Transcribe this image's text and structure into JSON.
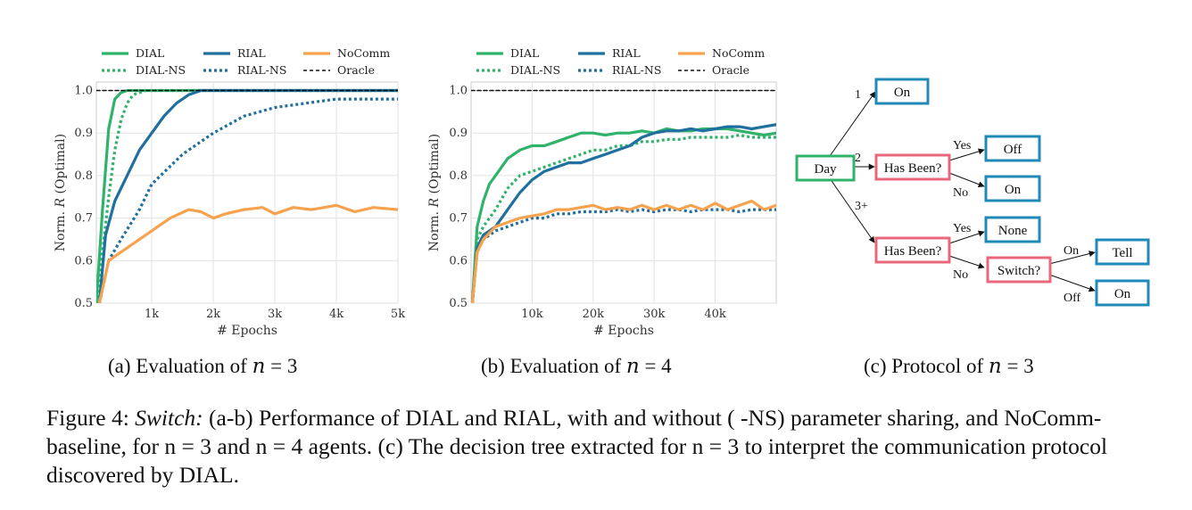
{
  "colors": {
    "DIAL": "#2fb36b",
    "RIAL": "#1f6f9f",
    "NoComm": "#f7a24e",
    "Oracle": "#111111",
    "tree_green": "#2fb36b",
    "tree_red": "#e8677b",
    "tree_blue": "#1f8ab8"
  },
  "legend": [
    {
      "name": "DIAL",
      "series": "DIAL",
      "dash": "solid"
    },
    {
      "name": "RIAL",
      "series": "RIAL",
      "dash": "solid"
    },
    {
      "name": "NoComm",
      "series": "NoComm",
      "dash": "solid"
    },
    {
      "name": "DIAL-NS",
      "series": "DIAL",
      "dash": "dotted"
    },
    {
      "name": "RIAL-NS",
      "series": "RIAL",
      "dash": "dotted"
    },
    {
      "name": "Oracle",
      "series": "Oracle",
      "dash": "dashed"
    }
  ],
  "chart_data": [
    {
      "type": "line",
      "xlabel": "# Epochs",
      "ylabel": "Norm. R (Optimal)",
      "xlim": [
        100,
        5000
      ],
      "ylim": [
        0.5,
        1.02
      ],
      "xticks": [
        1000,
        2000,
        3000,
        4000,
        5000
      ],
      "xtick_labels": [
        "1k",
        "2k",
        "3k",
        "4k",
        "5k"
      ],
      "yticks": [
        0.5,
        0.6,
        0.7,
        0.8,
        0.9,
        1.0
      ],
      "ytick_labels": [
        "0.5",
        "0.6",
        "0.7",
        "0.8",
        "0.9",
        "1.0"
      ],
      "grid": true,
      "legend_position": "top",
      "series": [
        {
          "name": "DIAL",
          "style": "solid",
          "x": [
            100,
            200,
            300,
            400,
            500,
            600,
            700,
            800,
            1000,
            5000
          ],
          "y": [
            0.5,
            0.72,
            0.91,
            0.98,
            0.995,
            1.0,
            1.0,
            1.0,
            1.0,
            1.0
          ]
        },
        {
          "name": "DIAL-NS",
          "style": "dotted",
          "x": [
            100,
            200,
            300,
            400,
            500,
            600,
            700,
            800,
            900,
            1000,
            5000
          ],
          "y": [
            0.5,
            0.62,
            0.75,
            0.86,
            0.93,
            0.97,
            0.99,
            0.995,
            1.0,
            1.0,
            1.0
          ]
        },
        {
          "name": "RIAL",
          "style": "solid",
          "x": [
            150,
            250,
            400,
            600,
            800,
            1000,
            1200,
            1400,
            1600,
            1800,
            2000,
            2500,
            5000
          ],
          "y": [
            0.5,
            0.66,
            0.74,
            0.8,
            0.86,
            0.9,
            0.94,
            0.97,
            0.99,
            1.0,
            1.0,
            1.0,
            1.0
          ]
        },
        {
          "name": "RIAL-NS",
          "style": "dotted",
          "x": [
            150,
            300,
            500,
            800,
            1000,
            1500,
            2000,
            2500,
            3000,
            3500,
            4000,
            4500,
            5000
          ],
          "y": [
            0.5,
            0.6,
            0.65,
            0.72,
            0.78,
            0.85,
            0.9,
            0.94,
            0.96,
            0.97,
            0.98,
            0.98,
            0.98
          ]
        },
        {
          "name": "NoComm",
          "style": "solid",
          "x": [
            150,
            300,
            500,
            700,
            1000,
            1300,
            1600,
            1800,
            2000,
            2200,
            2500,
            2800,
            3000,
            3300,
            3600,
            4000,
            4300,
            4600,
            5000
          ],
          "y": [
            0.5,
            0.6,
            0.62,
            0.64,
            0.67,
            0.7,
            0.72,
            0.715,
            0.7,
            0.71,
            0.72,
            0.725,
            0.71,
            0.725,
            0.72,
            0.73,
            0.715,
            0.725,
            0.72
          ]
        },
        {
          "name": "Oracle",
          "style": "dashed",
          "x": [
            100,
            5000
          ],
          "y": [
            1.0,
            1.0
          ]
        }
      ]
    },
    {
      "type": "line",
      "xlabel": "# Epochs",
      "ylabel": "Norm. R (Optimal)",
      "xlim": [
        0,
        50000
      ],
      "ylim": [
        0.5,
        1.02
      ],
      "xticks": [
        10000,
        20000,
        30000,
        40000
      ],
      "xtick_labels": [
        "10k",
        "20k",
        "30k",
        "40k"
      ],
      "yticks": [
        0.5,
        0.6,
        0.7,
        0.8,
        0.9,
        1.0
      ],
      "ytick_labels": [
        "0.5",
        "0.6",
        "0.7",
        "0.8",
        "0.9",
        "1.0"
      ],
      "grid": true,
      "legend_position": "top",
      "series": [
        {
          "name": "DIAL",
          "style": "solid",
          "x": [
            200,
            1000,
            2000,
            3000,
            4000,
            6000,
            8000,
            10000,
            12000,
            14000,
            16000,
            18000,
            20000,
            22000,
            24000,
            26000,
            28000,
            30000,
            32000,
            34000,
            36000,
            38000,
            40000,
            42000,
            44000,
            46000,
            48000,
            50000
          ],
          "y": [
            0.5,
            0.68,
            0.74,
            0.78,
            0.8,
            0.84,
            0.86,
            0.87,
            0.87,
            0.88,
            0.89,
            0.9,
            0.9,
            0.895,
            0.9,
            0.9,
            0.905,
            0.9,
            0.91,
            0.905,
            0.905,
            0.91,
            0.91,
            0.91,
            0.905,
            0.9,
            0.895,
            0.9
          ]
        },
        {
          "name": "DIAL-NS",
          "style": "dotted",
          "x": [
            200,
            1000,
            2000,
            4000,
            6000,
            8000,
            10000,
            12000,
            14000,
            16000,
            18000,
            20000,
            22000,
            24000,
            26000,
            28000,
            30000,
            32000,
            34000,
            36000,
            38000,
            40000,
            42000,
            44000,
            46000,
            48000,
            50000
          ],
          "y": [
            0.5,
            0.65,
            0.68,
            0.72,
            0.77,
            0.8,
            0.81,
            0.82,
            0.83,
            0.84,
            0.85,
            0.86,
            0.86,
            0.87,
            0.87,
            0.88,
            0.88,
            0.885,
            0.885,
            0.89,
            0.89,
            0.89,
            0.89,
            0.895,
            0.89,
            0.89,
            0.89
          ]
        },
        {
          "name": "RIAL",
          "style": "solid",
          "x": [
            200,
            1000,
            2000,
            4000,
            6000,
            8000,
            10000,
            12000,
            14000,
            16000,
            18000,
            20000,
            22000,
            24000,
            26000,
            28000,
            30000,
            32000,
            34000,
            36000,
            38000,
            40000,
            42000,
            44000,
            46000,
            48000,
            50000
          ],
          "y": [
            0.5,
            0.63,
            0.66,
            0.68,
            0.72,
            0.76,
            0.79,
            0.81,
            0.82,
            0.83,
            0.83,
            0.84,
            0.85,
            0.86,
            0.87,
            0.89,
            0.9,
            0.905,
            0.905,
            0.91,
            0.905,
            0.91,
            0.915,
            0.915,
            0.91,
            0.915,
            0.92
          ]
        },
        {
          "name": "RIAL-NS",
          "style": "dotted",
          "x": [
            200,
            1000,
            2000,
            4000,
            6000,
            8000,
            10000,
            12000,
            14000,
            16000,
            18000,
            20000,
            22000,
            24000,
            26000,
            28000,
            30000,
            32000,
            34000,
            36000,
            38000,
            40000,
            42000,
            44000,
            46000,
            48000,
            50000
          ],
          "y": [
            0.5,
            0.62,
            0.65,
            0.67,
            0.68,
            0.69,
            0.7,
            0.7,
            0.71,
            0.71,
            0.715,
            0.715,
            0.715,
            0.72,
            0.715,
            0.72,
            0.715,
            0.72,
            0.72,
            0.715,
            0.72,
            0.72,
            0.72,
            0.715,
            0.72,
            0.72,
            0.72
          ]
        },
        {
          "name": "NoComm",
          "style": "solid",
          "x": [
            200,
            1000,
            2000,
            4000,
            6000,
            8000,
            10000,
            12000,
            14000,
            16000,
            18000,
            20000,
            22000,
            24000,
            26000,
            28000,
            30000,
            32000,
            34000,
            36000,
            38000,
            40000,
            42000,
            44000,
            46000,
            48000,
            50000
          ],
          "y": [
            0.5,
            0.62,
            0.65,
            0.68,
            0.69,
            0.7,
            0.705,
            0.71,
            0.72,
            0.72,
            0.725,
            0.73,
            0.72,
            0.725,
            0.72,
            0.73,
            0.72,
            0.73,
            0.72,
            0.73,
            0.72,
            0.735,
            0.72,
            0.73,
            0.74,
            0.72,
            0.73
          ]
        },
        {
          "name": "Oracle",
          "style": "dashed",
          "x": [
            0,
            50000
          ],
          "y": [
            1.0,
            1.0
          ]
        }
      ]
    }
  ],
  "tree": {
    "nodes": [
      {
        "id": "day",
        "label": "Day",
        "color": "green"
      },
      {
        "id": "on1",
        "label": "On",
        "color": "blue"
      },
      {
        "id": "hb1",
        "label": "Has Been?",
        "color": "red"
      },
      {
        "id": "off",
        "label": "Off",
        "color": "blue"
      },
      {
        "id": "on2",
        "label": "On",
        "color": "blue"
      },
      {
        "id": "hb2",
        "label": "Has Been?",
        "color": "red"
      },
      {
        "id": "none",
        "label": "None",
        "color": "blue"
      },
      {
        "id": "switch",
        "label": "Switch?",
        "color": "red"
      },
      {
        "id": "tell",
        "label": "Tell",
        "color": "blue"
      },
      {
        "id": "on3",
        "label": "On",
        "color": "blue"
      }
    ],
    "edge_labels": {
      "one": "1",
      "two": "2",
      "three": "3+",
      "yes1": "Yes",
      "no1": "No",
      "yes2": "Yes",
      "no2": "No",
      "on": "On",
      "off": "Off"
    }
  },
  "subcaptions": {
    "a": "(a) Evaluation of n = 3",
    "b": "(b) Evaluation of n = 4",
    "c": "(c) Protocol of n = 3"
  },
  "caption": {
    "label": "Figure 4:",
    "italic": "Switch:",
    "text": "(a-b) Performance of DIAL and RIAL, with and without ( -NS) parameter sharing, and NoComm-baseline, for n = 3 and n = 4 agents. (c) The decision tree extracted for n = 3 to interpret the communication protocol discovered by DIAL."
  }
}
